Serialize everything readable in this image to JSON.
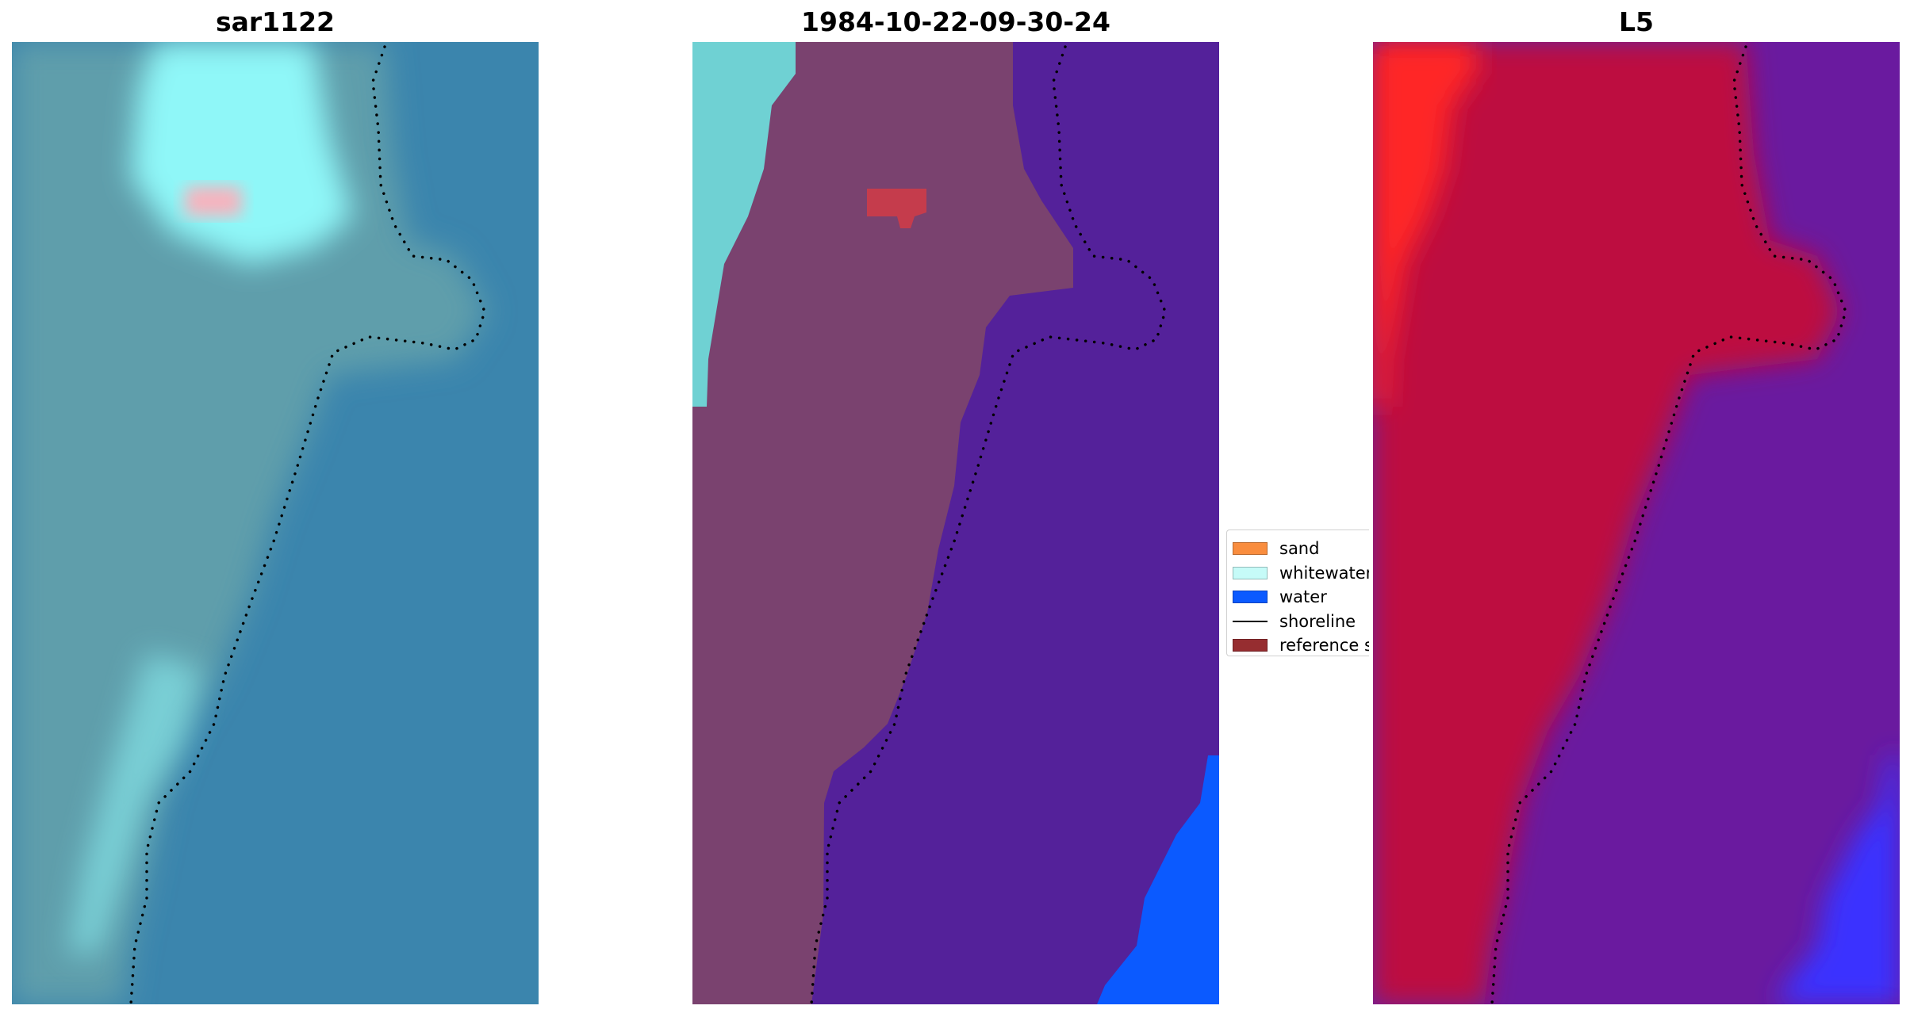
{
  "panels": [
    {
      "title": "sar1122",
      "kind": "rgb"
    },
    {
      "title": "1984-10-22-09-30-24",
      "kind": "classified"
    },
    {
      "title": "L5",
      "kind": "mndwi"
    }
  ],
  "legend": {
    "items": [
      {
        "label": "sand",
        "color": "#f98d3e",
        "shape": "patch"
      },
      {
        "label": "whitewater",
        "color": "#c6fbf8",
        "shape": "patch"
      },
      {
        "label": "water",
        "color": "#0b5aff",
        "shape": "patch"
      },
      {
        "label": "shoreline",
        "color": "#000000",
        "shape": "line"
      },
      {
        "label": "reference shoreline buffer",
        "color": "#962d30",
        "shape": "patch"
      }
    ]
  },
  "colors": {
    "rgb_land": "#5f9eab",
    "rgb_sea": "#3b85ad",
    "rgb_whitewater": "#8ff7f8",
    "rgb_bright_spot": "#f7b3be",
    "class_land": "#7a426f",
    "class_sea": "#54219a",
    "class_whitewater": "#6fd1d3",
    "class_water": "#0b5aff",
    "class_spot": "#c53c4c",
    "index_land": "#bd0e3f",
    "index_sea": "#6a1a9f",
    "index_edge": "#ff2828",
    "index_water": "#3a32ff",
    "shoreline": "#000000"
  }
}
